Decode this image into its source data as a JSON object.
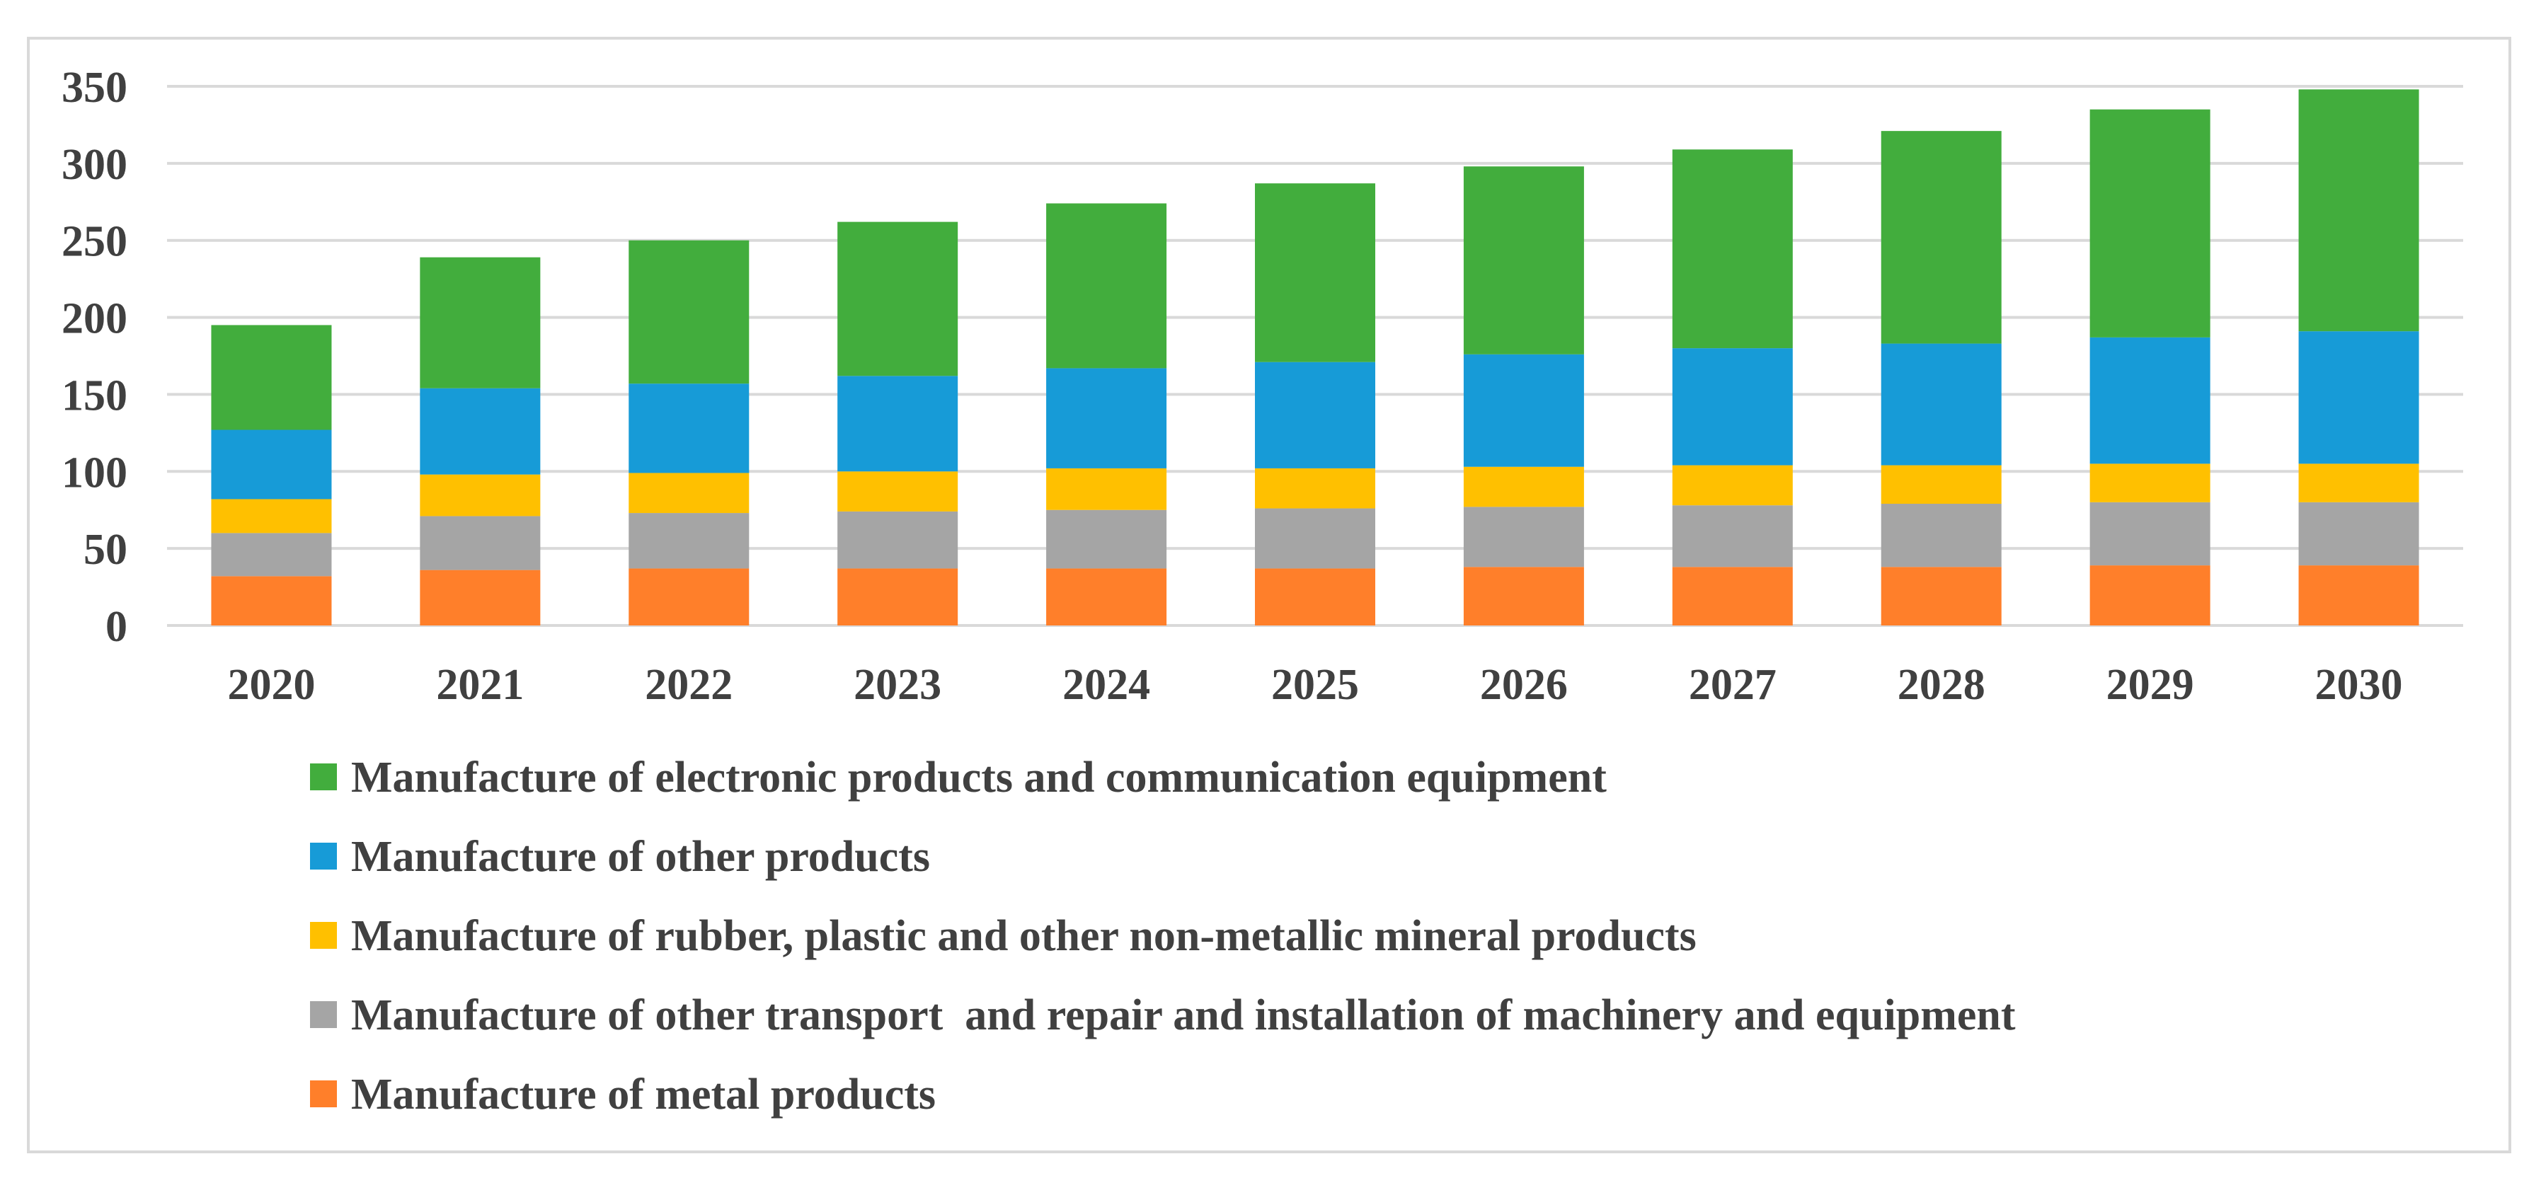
{
  "chart_data": {
    "type": "bar",
    "stacked": true,
    "title": "",
    "xlabel": "",
    "ylabel": "",
    "ylim": [
      0,
      350
    ],
    "yticks": [
      0,
      50,
      100,
      150,
      200,
      250,
      300,
      350
    ],
    "grid": true,
    "legend_position": "bottom",
    "categories": [
      "2020",
      "2021",
      "2022",
      "2023",
      "2024",
      "2025",
      "2026",
      "2027",
      "2028",
      "2029",
      "2030"
    ],
    "series": [
      {
        "name": "Manufacture of metal products",
        "color": "#ff7f2a",
        "values": [
          32,
          36,
          37,
          37,
          37,
          37,
          38,
          38,
          38,
          39,
          39
        ]
      },
      {
        "name": "Manufacture of other transport  and repair and installation of machinery and equipment",
        "color": "#a5a5a5",
        "values": [
          28,
          35,
          36,
          37,
          38,
          39,
          39,
          40,
          41,
          41,
          41
        ]
      },
      {
        "name": "Manufacture of rubber, plastic and other non-metallic mineral products",
        "color": "#ffc000",
        "values": [
          22,
          27,
          26,
          26,
          27,
          26,
          26,
          26,
          25,
          25,
          25
        ]
      },
      {
        "name": "Manufacture of other products",
        "color": "#179bd7",
        "values": [
          45,
          56,
          58,
          62,
          65,
          69,
          73,
          76,
          79,
          82,
          86
        ]
      },
      {
        "name": "Manufacture of electronic products and communication equipment",
        "color": "#42ad3d",
        "values": [
          68,
          85,
          93,
          100,
          107,
          116,
          122,
          129,
          138,
          148,
          157
        ]
      }
    ],
    "legend_order": [
      "Manufacture of electronic products and communication equipment",
      "Manufacture of other products",
      "Manufacture of rubber, plastic and other non-metallic mineral products",
      "Manufacture of other transport  and repair and installation of machinery and equipment",
      "Manufacture of metal products"
    ]
  }
}
